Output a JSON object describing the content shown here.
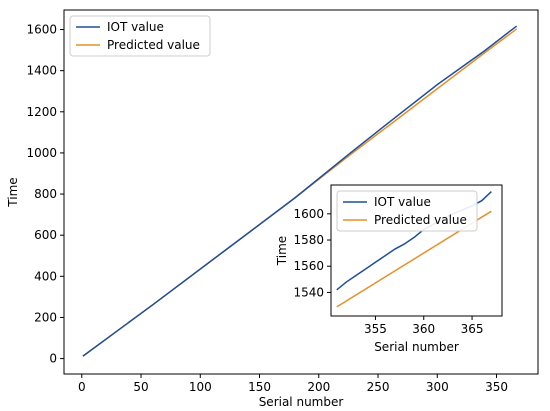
{
  "chart_data": [
    {
      "type": "line",
      "xlabel": "Serial number",
      "ylabel": "Time",
      "xlim": [
        -15,
        385
      ],
      "ylim": [
        -75,
        1695
      ],
      "xticks": [
        0,
        50,
        100,
        150,
        200,
        250,
        300,
        350
      ],
      "yticks": [
        0,
        200,
        400,
        600,
        800,
        1000,
        1200,
        1400,
        1600
      ],
      "legend": "top-left",
      "series": [
        {
          "name": "IOT value",
          "color": "#1f4e9a",
          "x": [
            1,
            60,
            120,
            180,
            225,
            260,
            300,
            340,
            367
          ],
          "y": [
            12,
            262,
            522,
            782,
            992,
            1152,
            1332,
            1497,
            1617
          ]
        },
        {
          "name": "Predicted value",
          "color": "#e5902a",
          "x": [
            1,
            60,
            120,
            180,
            225,
            260,
            300,
            340,
            367
          ],
          "y": [
            12,
            262,
            522,
            782,
            984,
            1137,
            1312,
            1487,
            1603
          ]
        }
      ]
    },
    {
      "type": "line",
      "xlabel": "Serial number",
      "ylabel": "Time",
      "xlim": [
        350.4,
        368.1
      ],
      "ylim": [
        1522,
        1622
      ],
      "xticks": [
        355,
        360,
        365
      ],
      "yticks": [
        1540,
        1560,
        1580,
        1600
      ],
      "legend": "top-left",
      "series": [
        {
          "name": "IOT value",
          "color": "#1f4e9a",
          "x": [
            351,
            352,
            353,
            354,
            355,
            356,
            357,
            358,
            359,
            360,
            361,
            362,
            363,
            364,
            365,
            366,
            367
          ],
          "y": [
            1542,
            1548,
            1553,
            1558,
            1563,
            1568,
            1573,
            1577,
            1582,
            1588,
            1592,
            1596,
            1600,
            1603,
            1606,
            1610,
            1617
          ]
        },
        {
          "name": "Predicted value",
          "color": "#e5902a",
          "x": [
            351,
            367
          ],
          "y": [
            1529,
            1602
          ]
        }
      ]
    }
  ]
}
